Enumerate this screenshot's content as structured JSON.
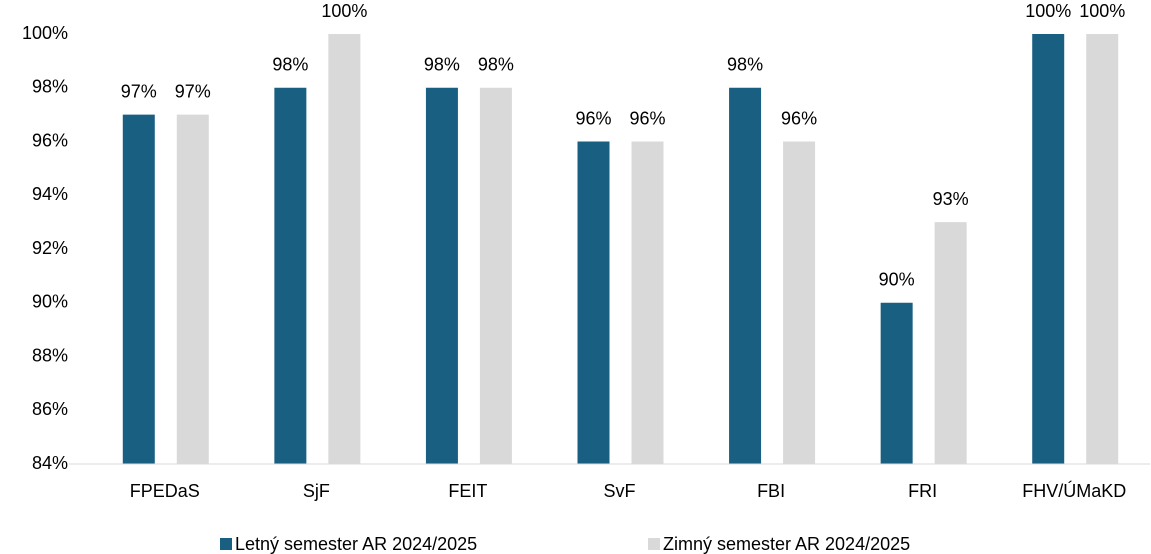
{
  "chart_data": {
    "type": "bar",
    "categories": [
      "FPEDaS",
      "SjF",
      "FEIT",
      "SvF",
      "FBI",
      "FRI",
      "FHV/ÚMaKD"
    ],
    "series": [
      {
        "name": "Letný semester AR 2024/2025",
        "color": "#195f82",
        "values": [
          97,
          98,
          98,
          96,
          98,
          90,
          100
        ],
        "value_labels": [
          "97%",
          "98%",
          "98%",
          "96%",
          "98%",
          "90%",
          "100%"
        ]
      },
      {
        "name": "Zimný semester AR 2024/2025",
        "color": "#d9d9d9",
        "values": [
          97,
          100,
          98,
          96,
          96,
          93,
          100
        ],
        "value_labels": [
          "97%",
          "100%",
          "98%",
          "96%",
          "96%",
          "93%",
          "100%"
        ]
      }
    ],
    "ylim": [
      84,
      100
    ],
    "yticks": [
      {
        "value": 84,
        "label": "84%"
      },
      {
        "value": 86,
        "label": "86%"
      },
      {
        "value": 88,
        "label": "88%"
      },
      {
        "value": 90,
        "label": "90%"
      },
      {
        "value": 92,
        "label": "92%"
      },
      {
        "value": 94,
        "label": "94%"
      },
      {
        "value": 96,
        "label": "96%"
      },
      {
        "value": 98,
        "label": "98%"
      },
      {
        "value": 100,
        "label": "100%"
      }
    ],
    "grid": false,
    "legend": "bottom"
  }
}
